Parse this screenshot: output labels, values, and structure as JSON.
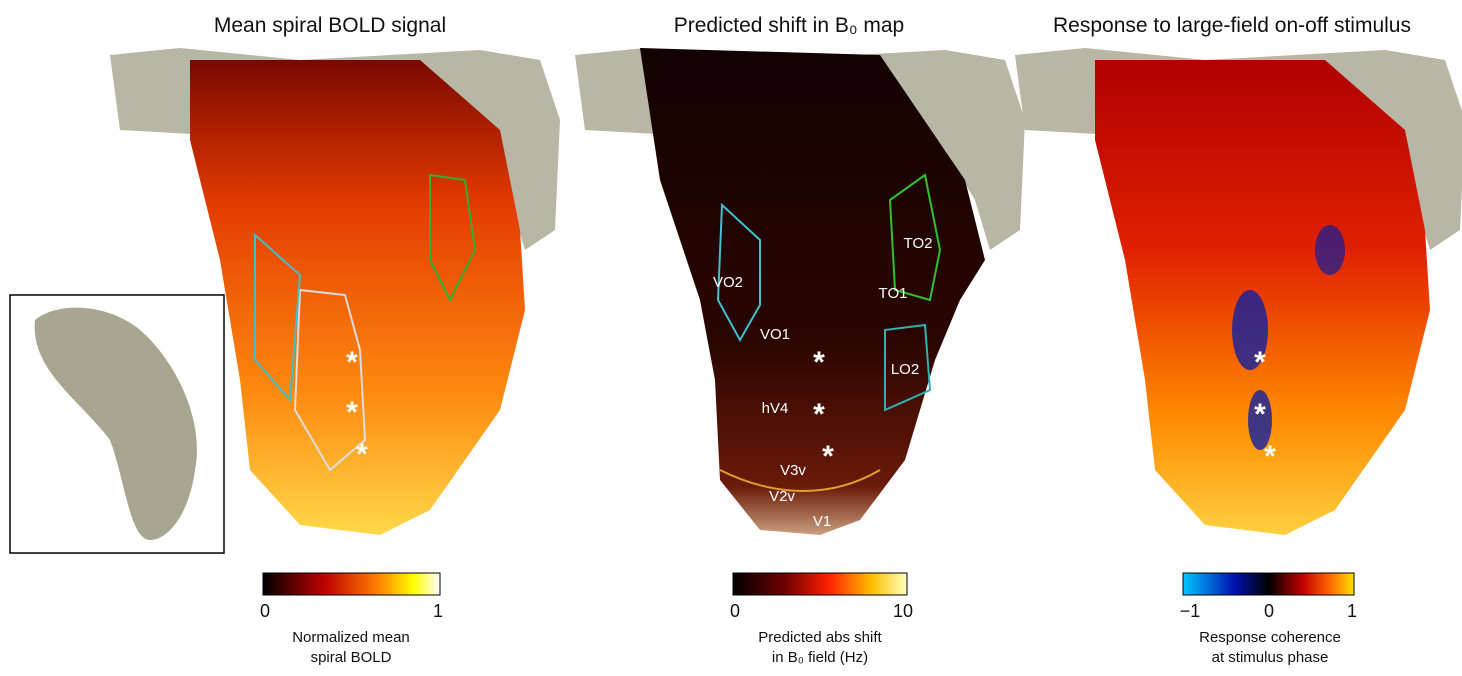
{
  "panels": [
    {
      "title": "Mean spiral BOLD signal",
      "colorbar": {
        "ticks": [
          "0",
          "1"
        ],
        "caption": [
          "Normalized mean",
          "spiral BOLD"
        ]
      },
      "asterisks": [
        "*",
        "*",
        "*"
      ]
    },
    {
      "title": "Predicted shift in B₀ map",
      "colorbar": {
        "ticks": [
          "0",
          "10"
        ],
        "caption": [
          "Predicted abs shift",
          "in B₀ field (Hz)"
        ]
      },
      "asterisks": [
        "*",
        "*",
        "*"
      ],
      "regions": [
        "VO2",
        "VO1",
        "hV4",
        "V3v",
        "V2v",
        "V1",
        "TO2",
        "TO1",
        "LO2"
      ]
    },
    {
      "title": "Response to large-field on-off stimulus",
      "colorbar": {
        "ticks": [
          "−1",
          "0",
          "1"
        ],
        "caption": [
          "Response coherence",
          "at stimulus phase"
        ]
      },
      "asterisks": [
        "*",
        "*",
        "*"
      ]
    }
  ]
}
